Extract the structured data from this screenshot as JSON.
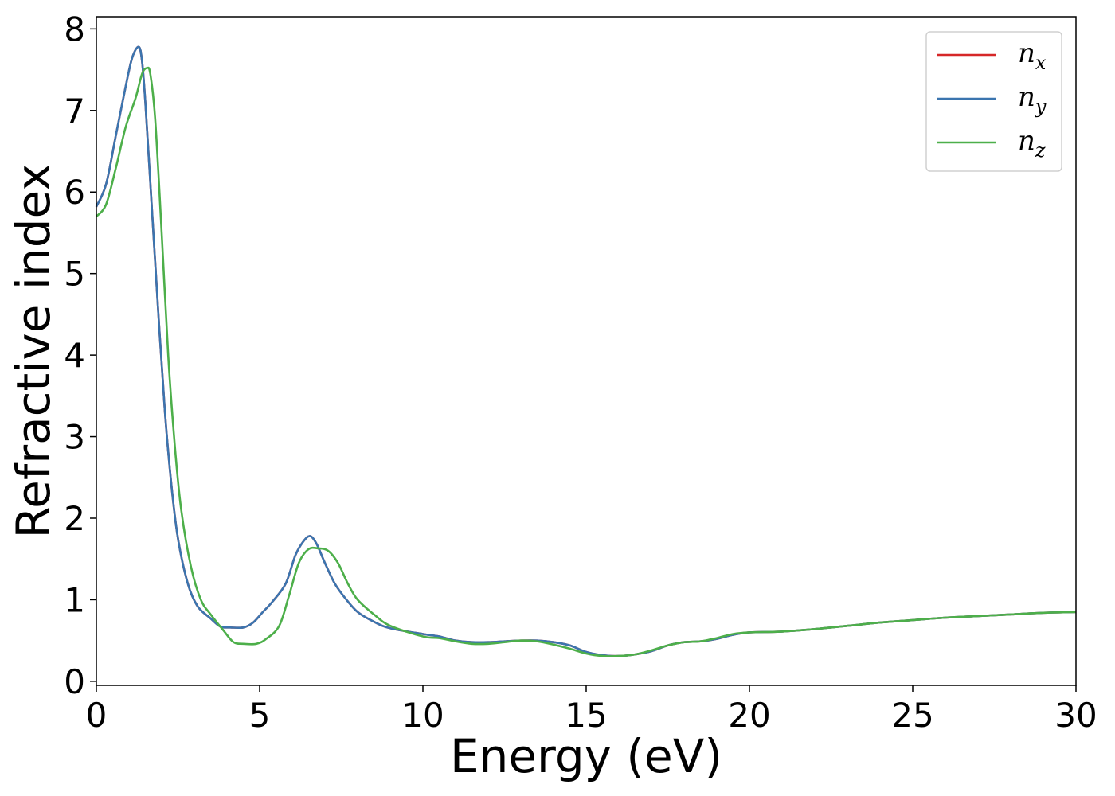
{
  "chart_data": {
    "type": "line",
    "title": "",
    "xlabel": "Energy (eV)",
    "ylabel": "Refractive index",
    "xlim": [
      0,
      30
    ],
    "ylim": [
      -0.05,
      8.15
    ],
    "xticks": [
      0,
      5,
      10,
      15,
      20,
      25,
      30
    ],
    "yticks": [
      0,
      1,
      2,
      3,
      4,
      5,
      6,
      7,
      8
    ],
    "grid": false,
    "legend_position": "top-right",
    "series": [
      {
        "name": "n",
        "sub": "x",
        "color": "#d62728",
        "x": [
          0,
          0.3,
          0.6,
          0.9,
          1.1,
          1.3,
          1.4,
          1.5,
          1.7,
          1.9,
          2.1,
          2.3,
          2.5,
          2.8,
          3.1,
          3.5,
          3.8,
          4.1,
          4.5,
          4.8,
          5.1,
          5.4,
          5.8,
          6.1,
          6.35,
          6.55,
          6.75,
          7.0,
          7.3,
          7.6,
          8.0,
          8.5,
          9.0,
          10.0,
          10.5,
          11.0,
          11.5,
          12.0,
          12.5,
          13.0,
          13.5,
          14.0,
          14.5,
          15.0,
          15.5,
          16.0,
          16.5,
          17.0,
          17.5,
          18.0,
          18.5,
          19.0,
          19.5,
          20.0,
          21.0,
          22.0,
          23.0,
          24.0,
          25.0,
          26.0,
          27.0,
          28.0,
          29.0,
          30.0
        ],
        "y": [
          5.82,
          6.1,
          6.7,
          7.3,
          7.65,
          7.78,
          7.6,
          7.1,
          5.8,
          4.5,
          3.3,
          2.4,
          1.75,
          1.2,
          0.92,
          0.77,
          0.67,
          0.66,
          0.66,
          0.72,
          0.85,
          0.98,
          1.2,
          1.55,
          1.72,
          1.78,
          1.68,
          1.45,
          1.2,
          1.03,
          0.85,
          0.73,
          0.65,
          0.58,
          0.55,
          0.5,
          0.48,
          0.48,
          0.49,
          0.5,
          0.5,
          0.48,
          0.44,
          0.36,
          0.32,
          0.31,
          0.33,
          0.37,
          0.44,
          0.48,
          0.49,
          0.52,
          0.57,
          0.6,
          0.61,
          0.64,
          0.68,
          0.72,
          0.75,
          0.78,
          0.8,
          0.82,
          0.84,
          0.85
        ]
      },
      {
        "name": "n",
        "sub": "y",
        "color": "#3b75af",
        "x": [
          0,
          0.3,
          0.6,
          0.9,
          1.1,
          1.3,
          1.4,
          1.5,
          1.7,
          1.9,
          2.1,
          2.3,
          2.5,
          2.8,
          3.1,
          3.5,
          3.8,
          4.1,
          4.5,
          4.8,
          5.1,
          5.4,
          5.8,
          6.1,
          6.35,
          6.55,
          6.75,
          7.0,
          7.3,
          7.6,
          8.0,
          8.5,
          9.0,
          10.0,
          10.5,
          11.0,
          11.5,
          12.0,
          12.5,
          13.0,
          13.5,
          14.0,
          14.5,
          15.0,
          15.5,
          16.0,
          16.5,
          17.0,
          17.5,
          18.0,
          18.5,
          19.0,
          19.5,
          20.0,
          21.0,
          22.0,
          23.0,
          24.0,
          25.0,
          26.0,
          27.0,
          28.0,
          29.0,
          30.0
        ],
        "y": [
          5.82,
          6.1,
          6.7,
          7.3,
          7.65,
          7.78,
          7.6,
          7.1,
          5.8,
          4.5,
          3.3,
          2.4,
          1.75,
          1.2,
          0.92,
          0.77,
          0.67,
          0.66,
          0.66,
          0.72,
          0.85,
          0.98,
          1.2,
          1.55,
          1.72,
          1.78,
          1.68,
          1.45,
          1.2,
          1.03,
          0.85,
          0.73,
          0.65,
          0.58,
          0.55,
          0.5,
          0.48,
          0.48,
          0.49,
          0.5,
          0.5,
          0.48,
          0.44,
          0.36,
          0.32,
          0.31,
          0.33,
          0.37,
          0.44,
          0.48,
          0.49,
          0.52,
          0.57,
          0.6,
          0.61,
          0.64,
          0.68,
          0.72,
          0.75,
          0.78,
          0.8,
          0.82,
          0.84,
          0.85
        ]
      },
      {
        "name": "n",
        "sub": "z",
        "color": "#4daf4a",
        "x": [
          0,
          0.3,
          0.6,
          0.9,
          1.2,
          1.4,
          1.55,
          1.65,
          1.8,
          2.0,
          2.2,
          2.4,
          2.6,
          2.9,
          3.2,
          3.5,
          3.9,
          4.2,
          4.5,
          4.9,
          5.2,
          5.6,
          5.9,
          6.2,
          6.5,
          6.8,
          7.1,
          7.4,
          7.7,
          8.0,
          8.5,
          9.0,
          10.0,
          10.5,
          11.0,
          11.5,
          12.0,
          12.5,
          13.0,
          13.5,
          14.0,
          14.5,
          15.0,
          15.5,
          16.0,
          16.5,
          17.0,
          17.5,
          18.0,
          18.5,
          19.0,
          19.5,
          20.0,
          21.0,
          22.0,
          23.0,
          24.0,
          25.0,
          26.0,
          27.0,
          28.0,
          29.0,
          30.0
        ],
        "y": [
          5.7,
          5.85,
          6.3,
          6.8,
          7.15,
          7.45,
          7.52,
          7.45,
          6.9,
          5.5,
          4.0,
          2.9,
          2.1,
          1.4,
          1.0,
          0.82,
          0.62,
          0.48,
          0.46,
          0.46,
          0.52,
          0.68,
          1.05,
          1.45,
          1.62,
          1.63,
          1.6,
          1.45,
          1.2,
          1.0,
          0.82,
          0.68,
          0.55,
          0.53,
          0.49,
          0.46,
          0.46,
          0.48,
          0.5,
          0.49,
          0.45,
          0.4,
          0.34,
          0.31,
          0.31,
          0.33,
          0.38,
          0.44,
          0.48,
          0.49,
          0.53,
          0.58,
          0.6,
          0.61,
          0.64,
          0.68,
          0.72,
          0.75,
          0.78,
          0.8,
          0.82,
          0.84,
          0.85
        ]
      }
    ]
  }
}
